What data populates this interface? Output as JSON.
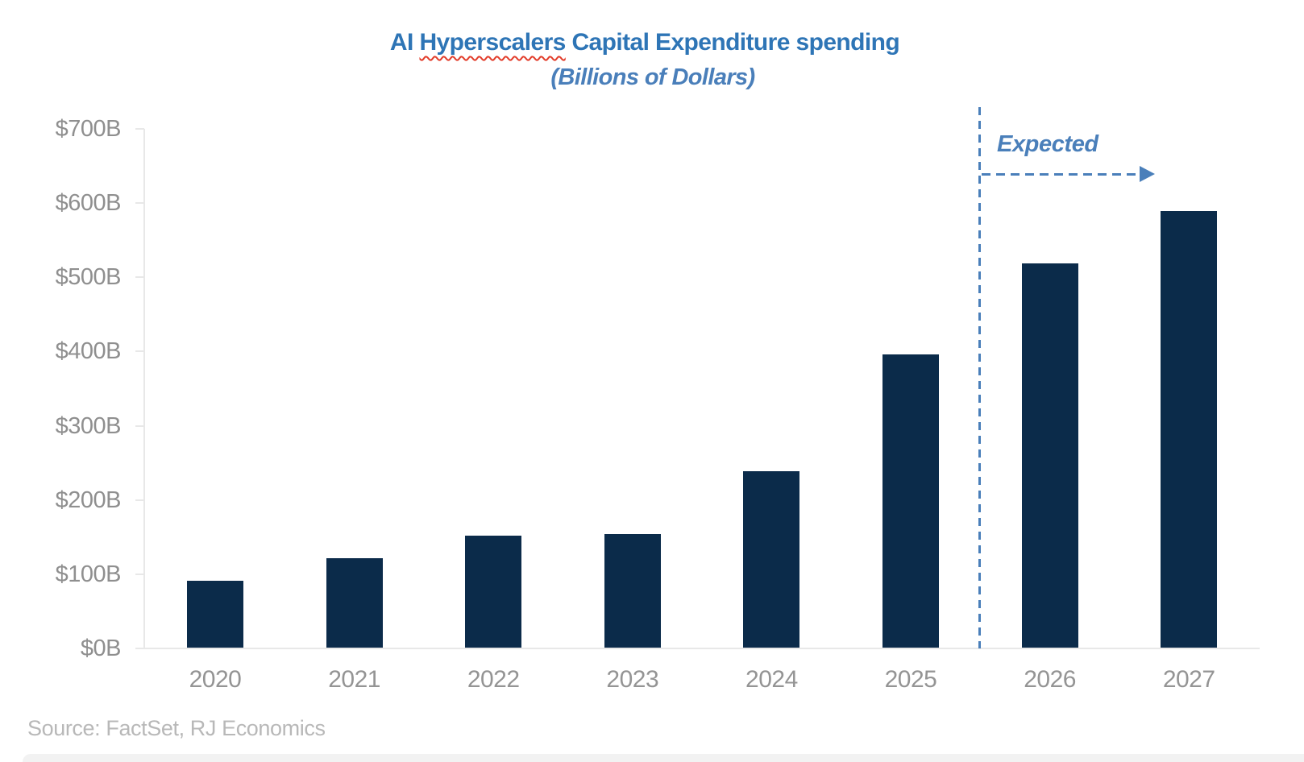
{
  "title": {
    "part1": "AI ",
    "misspelled": "Hyperscalers",
    "part2": " Capital Expenditure spending",
    "full": "AI Hyperscalers Capital Expenditure spending"
  },
  "subtitle": "(Billions of Dollars)",
  "annotation": {
    "label": "Expected",
    "applies_from_category": "2026"
  },
  "source": "Source: FactSet, RJ Economics",
  "colors": {
    "bar": "#0b2b4a",
    "accent": "#2e75b6",
    "annotation_blue": "#4a7fba",
    "axis_gray": "#e8e8e8",
    "ylabel_gray": "#8f8f8f",
    "xlabel_gray": "#949494",
    "source_gray": "#b8b8b8",
    "squiggle_red": "#e23c2a",
    "bottom_strip_gray": "#f2f2f2"
  },
  "chart_data": {
    "type": "bar",
    "title": "AI Hyperscalers Capital Expenditure spending",
    "subtitle": "(Billions of Dollars)",
    "unit": "USD billions",
    "categories": [
      "2020",
      "2021",
      "2022",
      "2023",
      "2024",
      "2025",
      "2026",
      "2027"
    ],
    "values": [
      91,
      122,
      152,
      154,
      239,
      396,
      519,
      589
    ],
    "ytick_labels_top_to_bottom": [
      "$700B",
      "$600B",
      "$500B",
      "$400B",
      "$300B",
      "$200B",
      "$100B",
      "$0B"
    ],
    "ylim": [
      0,
      700
    ],
    "grid": "off",
    "legend": "none",
    "expected_divider_between": [
      "2025",
      "2026"
    ],
    "expected_annotation": "Expected",
    "source": "Source: FactSet, RJ Economics"
  }
}
